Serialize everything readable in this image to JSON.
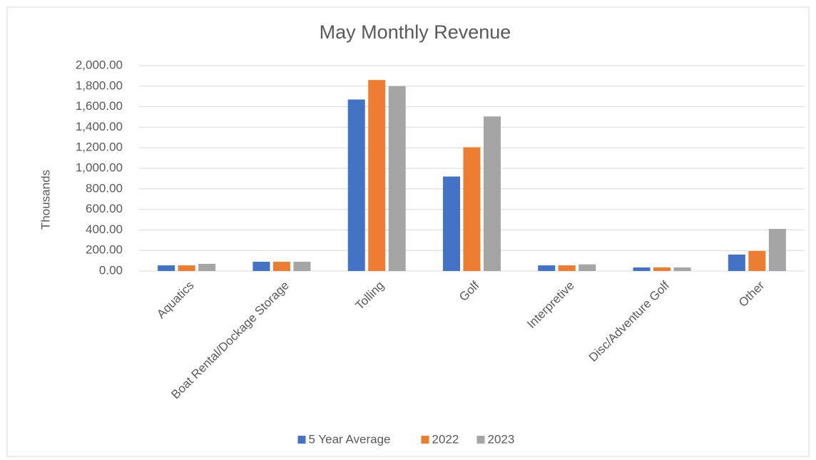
{
  "chart_data": {
    "type": "bar",
    "title": "May Monthly Revenue",
    "y_label": "Thousands",
    "categories": [
      "Aquatics",
      "Boat Rental/Dockage Storage",
      "Tolling",
      "Golf",
      "Interpretive",
      "Disc/Adventure Golf",
      "Other"
    ],
    "series": [
      {
        "name": "5 Year Average",
        "color": "#4472c4",
        "values": [
          55,
          90,
          1670,
          920,
          55,
          35,
          160
        ]
      },
      {
        "name": "2022",
        "color": "#ed7d31",
        "values": [
          55,
          90,
          1860,
          1205,
          55,
          35,
          195
        ]
      },
      {
        "name": "2023",
        "color": "#a5a5a5",
        "values": [
          70,
          90,
          1800,
          1505,
          65,
          35,
          410
        ]
      }
    ],
    "ylim": [
      0,
      2000
    ],
    "yticks": [
      {
        "value": 0,
        "label": "0.00"
      },
      {
        "value": 200,
        "label": "200.00"
      },
      {
        "value": 400,
        "label": "400.00"
      },
      {
        "value": 600,
        "label": "600.00"
      },
      {
        "value": 800,
        "label": "800.00"
      },
      {
        "value": 1000,
        "label": "1,000.00"
      },
      {
        "value": 1200,
        "label": "1,200.00"
      },
      {
        "value": 1400,
        "label": "1,400.00"
      },
      {
        "value": 1600,
        "label": "1,600.00"
      },
      {
        "value": 1800,
        "label": "1,800.00"
      },
      {
        "value": 2000,
        "label": "2,000.00"
      }
    ],
    "grid": true,
    "legend": "bottom"
  }
}
